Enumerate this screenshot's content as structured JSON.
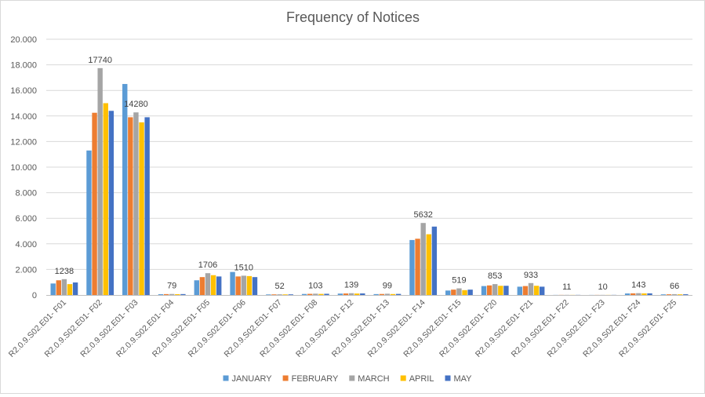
{
  "chart_data": {
    "type": "bar",
    "title": "Frequency of Notices",
    "xlabel": "",
    "ylabel": "",
    "ylim": [
      0,
      20000
    ],
    "yticks": [
      0,
      2000,
      4000,
      6000,
      8000,
      10000,
      12000,
      14000,
      16000,
      18000,
      20000
    ],
    "ytick_labels": [
      "0",
      "2.000",
      "4.000",
      "6.000",
      "8.000",
      "10.000",
      "12.000",
      "14.000",
      "16.000",
      "18.000",
      "20.000"
    ],
    "grid": true,
    "legend_position": "bottom",
    "categories": [
      "R2.0.9.S02.E01- F01",
      "R2.0.9.S02.E01- F02",
      "R2.0.9.S02.E01- F03",
      "R2.0.9.S02.E01- F04",
      "R2.0.9.S02.E01- F05",
      "R2.0.9.S02.E01- F06",
      "R2.0.9.S02.E01- F07",
      "R2.0.9.S02.E01- F08",
      "R2.0.9.S02.E01- F12",
      "R2.0.9.S02.E01- F13",
      "R2.0.9.S02.E01- F14",
      "R2.0.9.S02.E01- F15",
      "R2.0.9.S02.E01- F20",
      "R2.0.9.S02.E01- F21",
      "R2.0.9.S02.E01- F22",
      "R2.0.9.S02.E01- F23",
      "R2.0.9.S02.E01- F24",
      "R2.0.9.S02.E01- F25"
    ],
    "series": [
      {
        "name": "JANUARY",
        "color": "#5b9bd5",
        "values": [
          900,
          11300,
          16500,
          60,
          1150,
          1800,
          45,
          80,
          110,
          70,
          4300,
          350,
          700,
          650,
          8,
          7,
          120,
          50
        ]
      },
      {
        "name": "FEBRUARY",
        "color": "#ed7d31",
        "values": [
          1150,
          14250,
          13900,
          70,
          1400,
          1450,
          48,
          90,
          120,
          80,
          4400,
          420,
          750,
          700,
          9,
          8,
          130,
          55
        ]
      },
      {
        "name": "MARCH",
        "color": "#a5a5a5",
        "values": [
          1238,
          17740,
          14280,
          79,
          1706,
          1510,
          52,
          103,
          139,
          99,
          5632,
          519,
          853,
          933,
          11,
          10,
          143,
          66
        ]
      },
      {
        "name": "APRIL",
        "color": "#ffc000",
        "values": [
          850,
          15000,
          13500,
          65,
          1550,
          1480,
          47,
          85,
          115,
          75,
          4750,
          380,
          720,
          720,
          8,
          8,
          125,
          52
        ]
      },
      {
        "name": "MAY",
        "color": "#4472c4",
        "values": [
          980,
          14400,
          13900,
          72,
          1450,
          1400,
          50,
          95,
          125,
          85,
          5350,
          420,
          720,
          650,
          9,
          9,
          130,
          58
        ]
      }
    ],
    "data_labels": [
      {
        "category_index": 0,
        "series_index": 2,
        "text": "1238"
      },
      {
        "category_index": 1,
        "series_index": 2,
        "text": "17740"
      },
      {
        "category_index": 2,
        "series_index": 2,
        "text": "14280"
      },
      {
        "category_index": 3,
        "series_index": 2,
        "text": "79"
      },
      {
        "category_index": 4,
        "series_index": 2,
        "text": "1706"
      },
      {
        "category_index": 5,
        "series_index": 2,
        "text": "1510"
      },
      {
        "category_index": 6,
        "series_index": 2,
        "text": "52"
      },
      {
        "category_index": 7,
        "series_index": 2,
        "text": "103"
      },
      {
        "category_index": 8,
        "series_index": 2,
        "text": "139"
      },
      {
        "category_index": 9,
        "series_index": 2,
        "text": "99"
      },
      {
        "category_index": 10,
        "series_index": 2,
        "text": "5632"
      },
      {
        "category_index": 11,
        "series_index": 2,
        "text": "519"
      },
      {
        "category_index": 12,
        "series_index": 2,
        "text": "853"
      },
      {
        "category_index": 13,
        "series_index": 2,
        "text": "933"
      },
      {
        "category_index": 14,
        "series_index": 2,
        "text": "11"
      },
      {
        "category_index": 15,
        "series_index": 2,
        "text": "10"
      },
      {
        "category_index": 16,
        "series_index": 2,
        "text": "143"
      },
      {
        "category_index": 17,
        "series_index": 2,
        "text": "66"
      }
    ]
  }
}
